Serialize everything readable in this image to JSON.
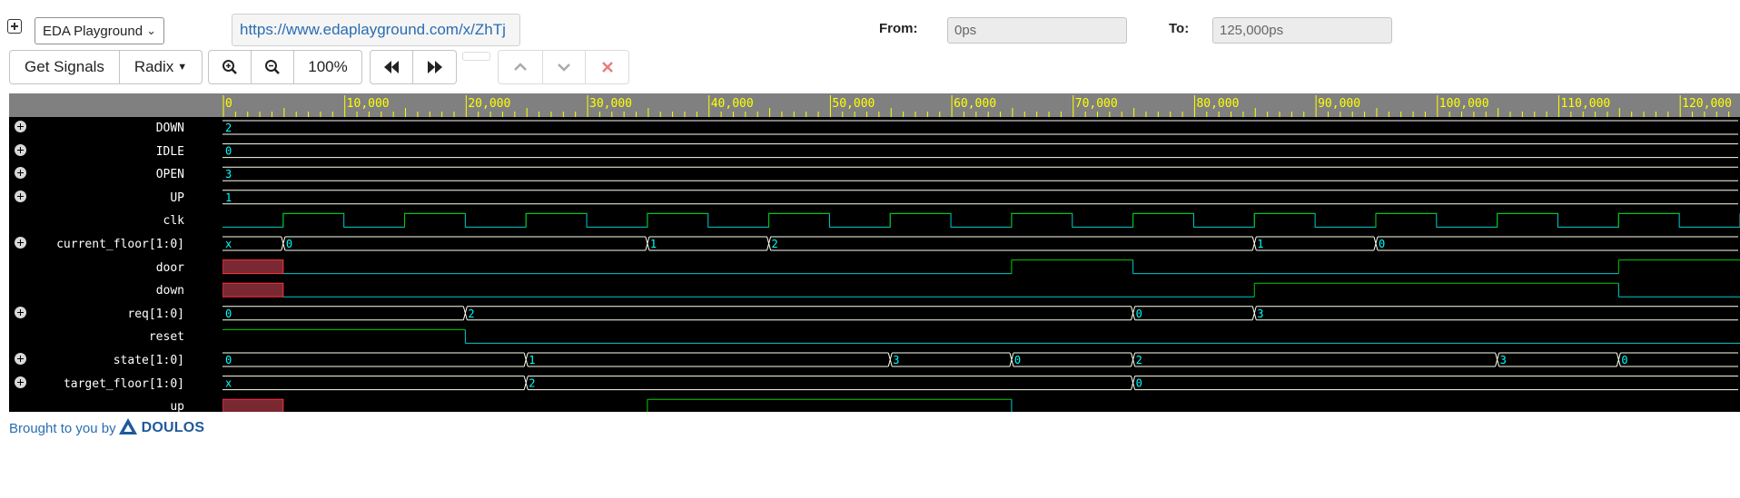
{
  "top": {
    "select_value": "EDA Playground",
    "url": "https://www.edaplayground.com/x/ZhTj",
    "from_label": "From:",
    "from_value": "0ps",
    "to_label": "To:",
    "to_value": "125,000ps"
  },
  "toolbar": {
    "get_signals": "Get Signals",
    "radix": "Radix",
    "zoom_level": "100%"
  },
  "colors": {
    "wave_high": "#00cc00",
    "wave_low": "#00cccc",
    "bus": "#ffffee",
    "value_text": "#00ffff",
    "unknown": "#7a2832",
    "ruler_text": "#ffff00",
    "link": "#2a6db0"
  },
  "ruler": {
    "ticks": [
      "0",
      "10,000",
      "20,000",
      "30,000",
      "40,000",
      "50,000",
      "60,000",
      "70,000",
      "80,000",
      "90,000",
      "100,000",
      "110,000",
      "120,000"
    ]
  },
  "signals": [
    {
      "name": "DOWN",
      "expandable": true,
      "type": "bus",
      "segments": [
        {
          "t": 0,
          "v": "2"
        }
      ]
    },
    {
      "name": "IDLE",
      "expandable": true,
      "type": "bus",
      "segments": [
        {
          "t": 0,
          "v": "0"
        }
      ]
    },
    {
      "name": "OPEN",
      "expandable": true,
      "type": "bus",
      "segments": [
        {
          "t": 0,
          "v": "3"
        }
      ]
    },
    {
      "name": "UP",
      "expandable": true,
      "type": "bus",
      "segments": [
        {
          "t": 0,
          "v": "1"
        }
      ]
    },
    {
      "name": "clk",
      "expandable": false,
      "type": "clock",
      "period": 10000,
      "first_rise": 5000
    },
    {
      "name": "current_floor[1:0]",
      "expandable": true,
      "type": "bus",
      "segments": [
        {
          "t": 0,
          "v": "x"
        },
        {
          "t": 5000,
          "v": "0"
        },
        {
          "t": 35000,
          "v": "1"
        },
        {
          "t": 45000,
          "v": "2"
        },
        {
          "t": 85000,
          "v": "1"
        },
        {
          "t": 95000,
          "v": "0"
        }
      ]
    },
    {
      "name": "door",
      "expandable": false,
      "type": "bit",
      "segments": [
        {
          "t": 0,
          "v": "x"
        },
        {
          "t": 5000,
          "v": 0
        },
        {
          "t": 65000,
          "v": 1
        },
        {
          "t": 75000,
          "v": 0
        },
        {
          "t": 115000,
          "v": 1
        }
      ]
    },
    {
      "name": "down",
      "expandable": false,
      "type": "bit",
      "segments": [
        {
          "t": 0,
          "v": "x"
        },
        {
          "t": 5000,
          "v": 0
        },
        {
          "t": 85000,
          "v": 1
        },
        {
          "t": 115000,
          "v": 0
        }
      ]
    },
    {
      "name": "req[1:0]",
      "expandable": true,
      "type": "bus",
      "segments": [
        {
          "t": 0,
          "v": "0"
        },
        {
          "t": 20000,
          "v": "2"
        },
        {
          "t": 75000,
          "v": "0"
        },
        {
          "t": 85000,
          "v": "3"
        }
      ]
    },
    {
      "name": "reset",
      "expandable": false,
      "type": "bit",
      "segments": [
        {
          "t": 0,
          "v": 1
        },
        {
          "t": 20000,
          "v": 0
        }
      ]
    },
    {
      "name": "state[1:0]",
      "expandable": true,
      "type": "bus",
      "segments": [
        {
          "t": 0,
          "v": "0"
        },
        {
          "t": 25000,
          "v": "1"
        },
        {
          "t": 55000,
          "v": "3"
        },
        {
          "t": 65000,
          "v": "0"
        },
        {
          "t": 75000,
          "v": "2"
        },
        {
          "t": 105000,
          "v": "3"
        },
        {
          "t": 115000,
          "v": "0"
        }
      ]
    },
    {
      "name": "target_floor[1:0]",
      "expandable": true,
      "type": "bus",
      "segments": [
        {
          "t": 0,
          "v": "x"
        },
        {
          "t": 25000,
          "v": "2"
        },
        {
          "t": 75000,
          "v": "0"
        }
      ]
    },
    {
      "name": "up",
      "expandable": false,
      "type": "bit",
      "segments": [
        {
          "t": 0,
          "v": "x"
        },
        {
          "t": 5000,
          "v": 0
        },
        {
          "t": 35000,
          "v": 1
        },
        {
          "t": 65000,
          "v": 0
        }
      ]
    }
  ],
  "footer": {
    "text": "Brought to you by",
    "brand": "DOULOS"
  }
}
